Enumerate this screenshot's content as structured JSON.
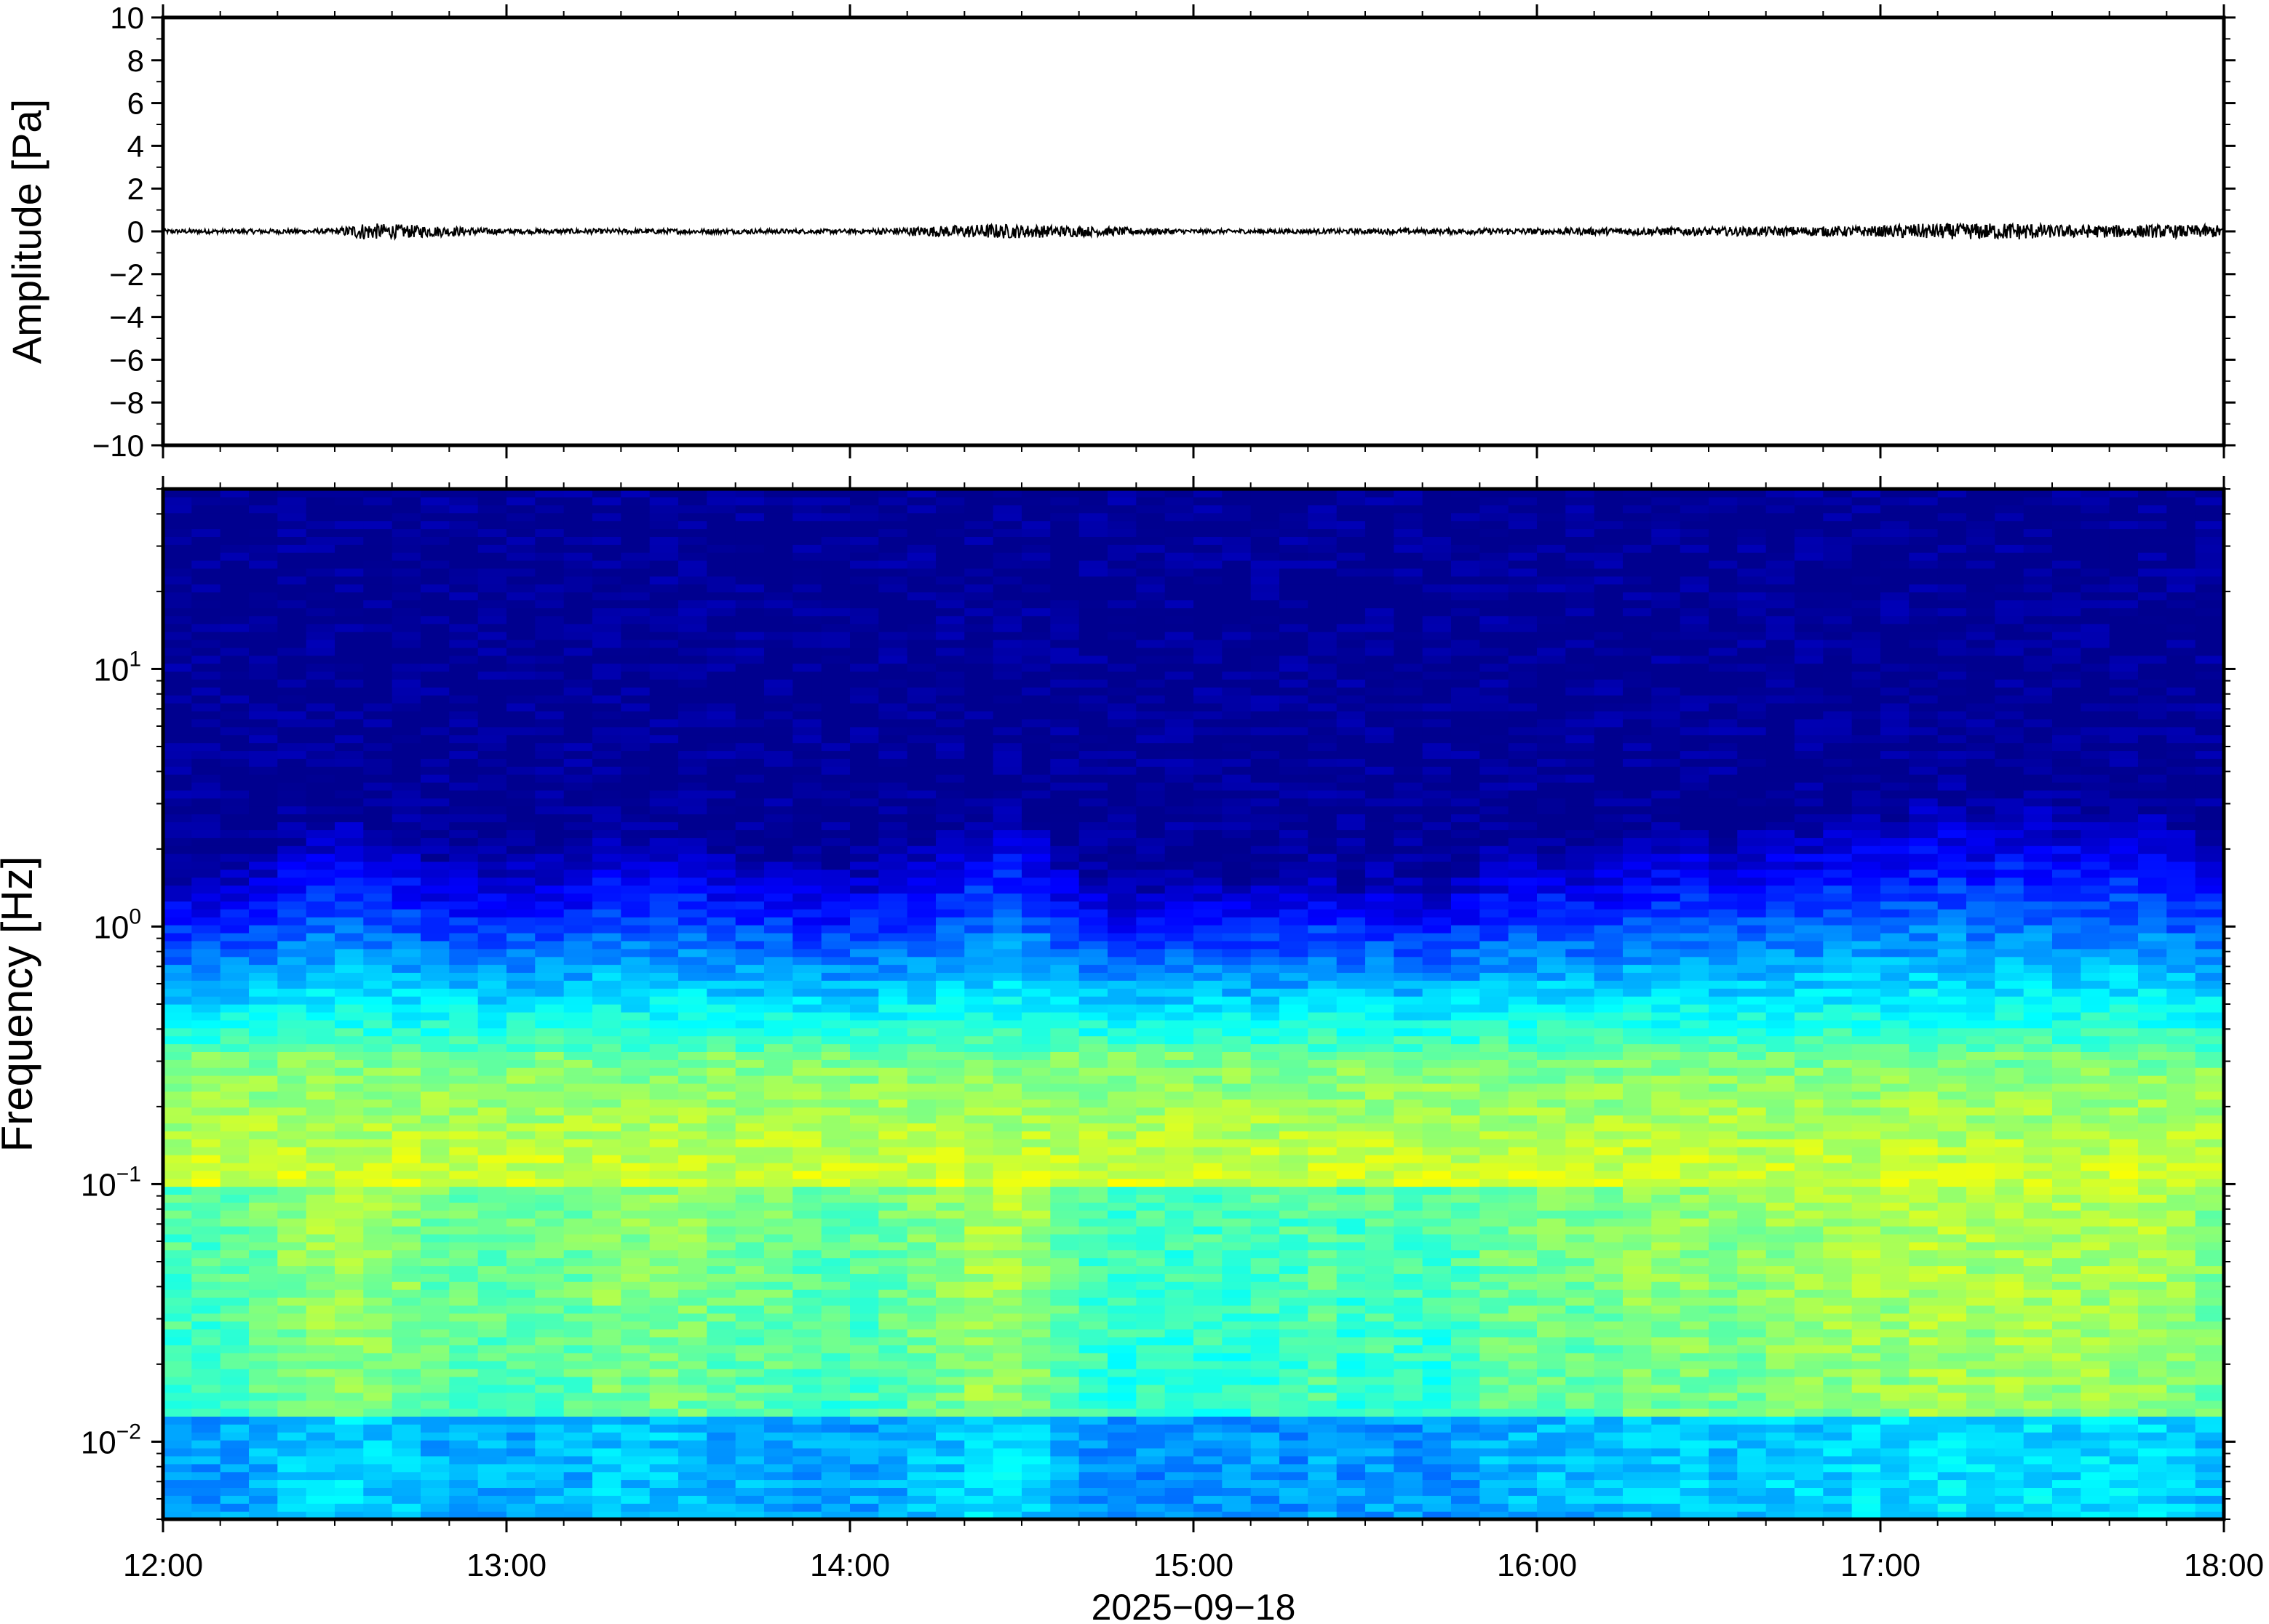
{
  "chart_data": [
    {
      "type": "line",
      "ylabel": "Amplitude [Pa]",
      "ylim": [
        -10,
        10
      ],
      "yticks": [
        10,
        8,
        6,
        4,
        2,
        0,
        -2,
        -4,
        -6,
        -8,
        -10
      ],
      "ytick_labels": [
        "10",
        "8",
        "6",
        "4",
        "2",
        "0",
        "−2",
        "−4",
        "−6",
        "−8",
        "−10"
      ],
      "x_range": [
        "12:00",
        "18:00"
      ],
      "series": [
        {
          "x_hours": [
            12.0,
            12.5,
            12.58,
            13.0,
            13.5,
            14.0,
            14.33,
            14.42,
            15.0,
            15.5,
            16.0,
            16.5,
            17.0,
            17.08,
            17.42,
            17.5,
            18.0
          ],
          "envelope_pa": [
            0.1,
            0.12,
            0.4,
            0.12,
            0.12,
            0.1,
            0.3,
            0.35,
            0.1,
            0.12,
            0.15,
            0.2,
            0.25,
            0.35,
            0.4,
            0.3,
            0.3
          ]
        }
      ]
    },
    {
      "type": "heatmap",
      "ylabel": "Frequency [Hz]",
      "y_scale": "log",
      "ylim_hz": [
        0.005,
        50
      ],
      "ytick_values": [
        0.01,
        0.1,
        1,
        10
      ],
      "ytick_labels": [
        {
          "base": "10",
          "exp": "−2"
        },
        {
          "base": "10",
          "exp": "−1"
        },
        {
          "base": "10",
          "exp": "0"
        },
        {
          "base": "10",
          "exp": "1"
        }
      ],
      "xlabel": "2025−09−18",
      "xtick_labels": [
        "12:00",
        "13:00",
        "14:00",
        "15:00",
        "16:00",
        "17:00",
        "18:00"
      ],
      "colormap": [
        "#00008f",
        "#0000ff",
        "#0080ff",
        "#00ffff",
        "#80ff80",
        "#ffff00",
        "#ff8000"
      ],
      "activity_by_hour": [
        {
          "hour": 12.0,
          "level": 0.25
        },
        {
          "hour": 12.55,
          "level": 0.65
        },
        {
          "hour": 12.9,
          "level": 0.45
        },
        {
          "hour": 13.3,
          "level": 0.55
        },
        {
          "hour": 13.7,
          "level": 0.5
        },
        {
          "hour": 14.0,
          "level": 0.25
        },
        {
          "hour": 14.45,
          "level": 0.85
        },
        {
          "hour": 14.8,
          "level": 0.15
        },
        {
          "hour": 15.3,
          "level": 0.3
        },
        {
          "hour": 15.7,
          "level": 0.25
        },
        {
          "hour": 16.0,
          "level": 0.45
        },
        {
          "hour": 16.6,
          "level": 0.65
        },
        {
          "hour": 17.1,
          "level": 0.75
        },
        {
          "hour": 17.6,
          "level": 0.8
        },
        {
          "hour": 18.0,
          "level": 0.6
        }
      ]
    }
  ]
}
